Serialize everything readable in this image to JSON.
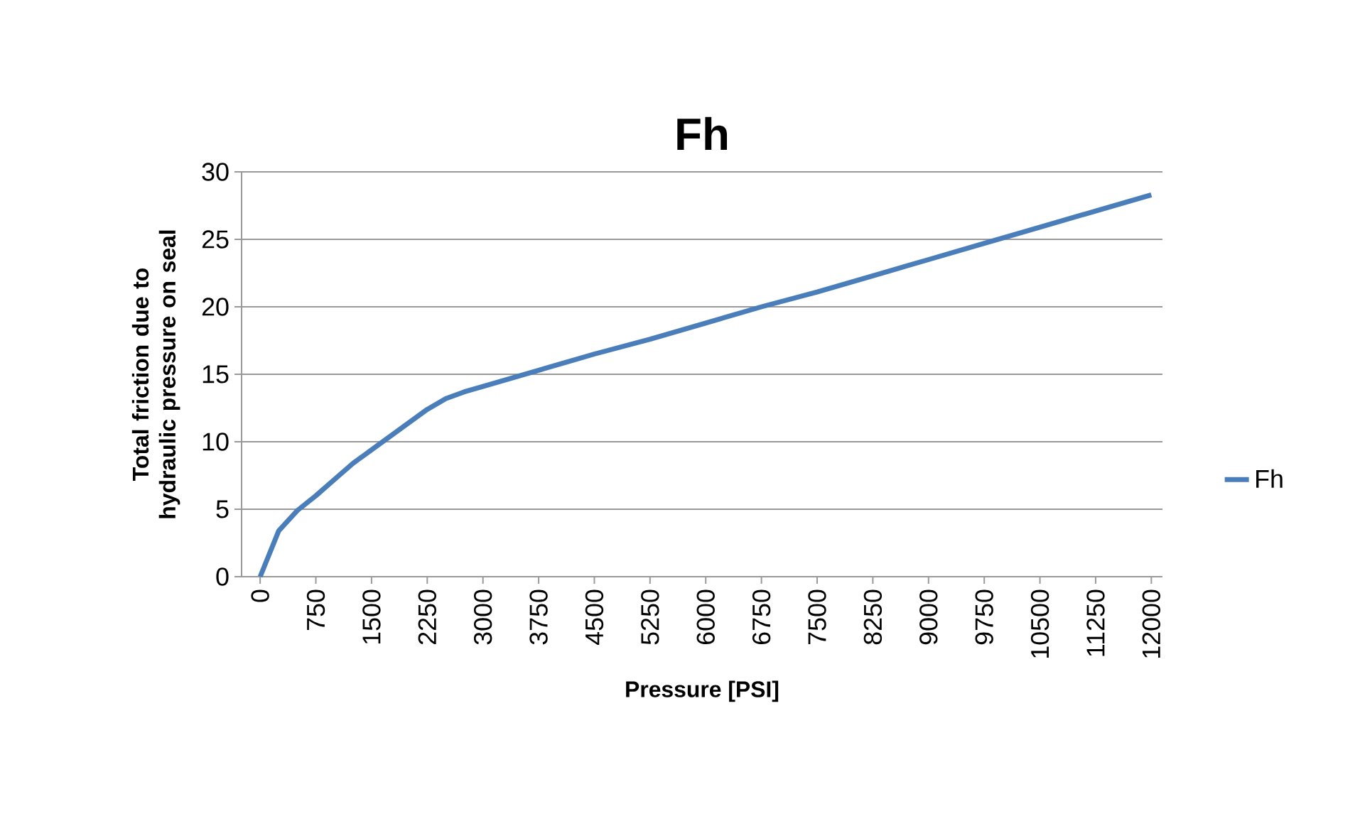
{
  "chart_data": {
    "type": "line",
    "title": "Fh",
    "xlabel": "Pressure [PSI]",
    "ylabel": "Total friction due to hydraulic pressure on seal",
    "x": [
      0,
      250,
      500,
      750,
      1000,
      1250,
      1500,
      1750,
      2000,
      2250,
      2500,
      2750,
      3000,
      3750,
      4500,
      5250,
      6000,
      6750,
      7500,
      8250,
      9000,
      9750,
      10500,
      11250,
      12000
    ],
    "series": [
      {
        "name": "Fh",
        "color": "#4a7ebb",
        "values": [
          0,
          3.4,
          4.9,
          6.0,
          7.2,
          8.4,
          9.4,
          10.4,
          11.4,
          12.4,
          13.2,
          13.7,
          14.1,
          15.3,
          16.5,
          17.6,
          18.8,
          20.0,
          21.1,
          22.3,
          23.5,
          24.7,
          25.9,
          27.1,
          28.3
        ]
      }
    ],
    "xlim": [
      -250,
      12150
    ],
    "ylim": [
      0,
      30
    ],
    "xticks": [
      0,
      750,
      1500,
      2250,
      3000,
      3750,
      4500,
      5250,
      6000,
      6750,
      7500,
      8250,
      9000,
      9750,
      10500,
      11250,
      12000
    ],
    "yticks": [
      0,
      5,
      10,
      15,
      20,
      25,
      30
    ],
    "grid": "y",
    "legend": "right",
    "marker": "none",
    "line_style": "solid"
  }
}
